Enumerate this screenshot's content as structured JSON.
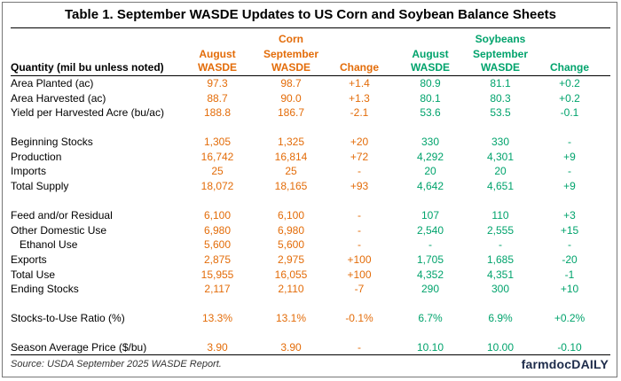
{
  "title": "Table 1. September WASDE Updates to US Corn and Soybean Balance Sheets",
  "groups": {
    "corn": "Corn",
    "soybeans": "Soybeans"
  },
  "headers": {
    "quantity": "Quantity (mil bu unless noted)",
    "corn_aug_1": "August",
    "corn_aug_2": "WASDE",
    "corn_sep_1": "September",
    "corn_sep_2": "WASDE",
    "corn_change": "Change",
    "soy_aug_1": "August",
    "soy_aug_2": "WASDE",
    "soy_sep_1": "September",
    "soy_sep_2": "WASDE",
    "soy_change": "Change"
  },
  "rows": [
    {
      "label": "Area Planted (ac)",
      "c": [
        "97.3",
        "98.7",
        "+1.4",
        "80.9",
        "81.1",
        "+0.2"
      ]
    },
    {
      "label": "Area Harvested (ac)",
      "c": [
        "88.7",
        "90.0",
        "+1.3",
        "80.1",
        "80.3",
        "+0.2"
      ]
    },
    {
      "label": "Yield per Harvested Acre (bu/ac)",
      "c": [
        "188.8",
        "186.7",
        "-2.1",
        "53.6",
        "53.5",
        "-0.1"
      ]
    },
    {
      "label": "Beginning Stocks",
      "c": [
        "1,305",
        "1,325",
        "+20",
        "330",
        "330",
        "-"
      ]
    },
    {
      "label": "Production",
      "c": [
        "16,742",
        "16,814",
        "+72",
        "4,292",
        "4,301",
        "+9"
      ]
    },
    {
      "label": "Imports",
      "c": [
        "25",
        "25",
        "-",
        "20",
        "20",
        "-"
      ]
    },
    {
      "label": "Total Supply",
      "c": [
        "18,072",
        "18,165",
        "+93",
        "4,642",
        "4,651",
        "+9"
      ]
    },
    {
      "label": "Feed and/or Residual",
      "c": [
        "6,100",
        "6,100",
        "-",
        "107",
        "110",
        "+3"
      ]
    },
    {
      "label": "Other Domestic Use",
      "c": [
        "6,980",
        "6,980",
        "-",
        "2,540",
        "2,555",
        "+15"
      ]
    },
    {
      "label": "Ethanol Use",
      "c": [
        "5,600",
        "5,600",
        "-",
        "-",
        "-",
        "-"
      ]
    },
    {
      "label": "Exports",
      "c": [
        "2,875",
        "2,975",
        "+100",
        "1,705",
        "1,685",
        "-20"
      ]
    },
    {
      "label": "Total Use",
      "c": [
        "15,955",
        "16,055",
        "+100",
        "4,352",
        "4,351",
        "-1"
      ]
    },
    {
      "label": "Ending Stocks",
      "c": [
        "2,117",
        "2,110",
        "-7",
        "290",
        "300",
        "+10"
      ]
    },
    {
      "label": "Stocks-to-Use Ratio (%)",
      "c": [
        "13.3%",
        "13.1%",
        "-0.1%",
        "6.7%",
        "6.9%",
        "+0.2%"
      ]
    },
    {
      "label": "Season Average Price ($/bu)",
      "c": [
        "3.90",
        "3.90",
        "-",
        "10.10",
        "10.00",
        "-0.10"
      ]
    }
  ],
  "source": "Source: USDA September 2025 WASDE Report.",
  "logo": "farmdocDAILY",
  "colors": {
    "corn": "#e36c09",
    "soybeans": "#00a36c"
  }
}
